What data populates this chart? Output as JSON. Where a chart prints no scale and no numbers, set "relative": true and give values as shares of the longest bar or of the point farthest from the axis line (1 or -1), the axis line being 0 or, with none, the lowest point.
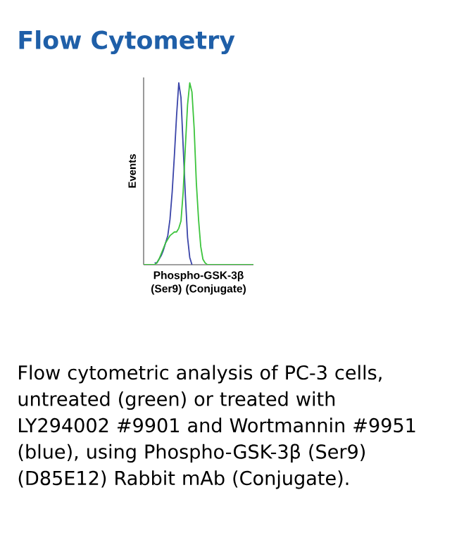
{
  "chart_data": {
    "type": "line",
    "title": "Flow Cytometry",
    "xlabel": "Phospho-GSK-3β (Ser9) (Conjugate)",
    "ylabel": "Events",
    "relative": true,
    "categories": [
      null,
      null,
      null,
      null,
      null,
      null,
      null,
      null,
      null,
      null,
      null,
      null,
      null,
      null,
      null,
      null,
      null,
      null,
      null,
      null,
      null,
      null,
      null,
      null,
      null,
      null,
      null,
      null,
      null,
      null,
      null,
      null,
      null,
      null,
      null,
      null,
      null,
      null,
      null,
      null,
      null,
      null,
      null,
      null,
      null,
      null,
      null,
      null,
      null,
      null,
      null
    ],
    "series": [
      {
        "color": "#3a44a8",
        "values": [
          null,
          null,
          null,
          null,
          null,
          0.01,
          0.01,
          0.03,
          0.05,
          0.08,
          0.12,
          0.16,
          0.25,
          0.4,
          0.6,
          0.82,
          1,
          0.92,
          0.65,
          0.38,
          0.15,
          0.04,
          0,
          null,
          null,
          null,
          null,
          null,
          null,
          null,
          null,
          null,
          null,
          null,
          null,
          null,
          null,
          null,
          null,
          null,
          null,
          null,
          null,
          null,
          null,
          null,
          null,
          null,
          null,
          null,
          null
        ]
      },
      {
        "color": "#3cc43c",
        "values": [
          0,
          0,
          0,
          0,
          0,
          0,
          0.01,
          0.03,
          0.06,
          0.09,
          0.12,
          0.14,
          0.16,
          0.17,
          0.18,
          0.18,
          0.2,
          0.24,
          0.4,
          0.65,
          0.88,
          1,
          0.95,
          0.75,
          0.45,
          0.25,
          0.1,
          0.03,
          0.01,
          0,
          0,
          0,
          0,
          0,
          0,
          0,
          0,
          0,
          0,
          0,
          0,
          0,
          0,
          0,
          0,
          0,
          0,
          0,
          0,
          0,
          0
        ]
      }
    ],
    "annotations": [
      "Flow cytometric analysis of PC-3 cells, untreated (green) or treated with LY294002 #9901 and Wortmannin #9951 (blue), using Phospho-GSK-3β (Ser9) (D85E12) Rabbit mAb (Conjugate)."
    ]
  }
}
